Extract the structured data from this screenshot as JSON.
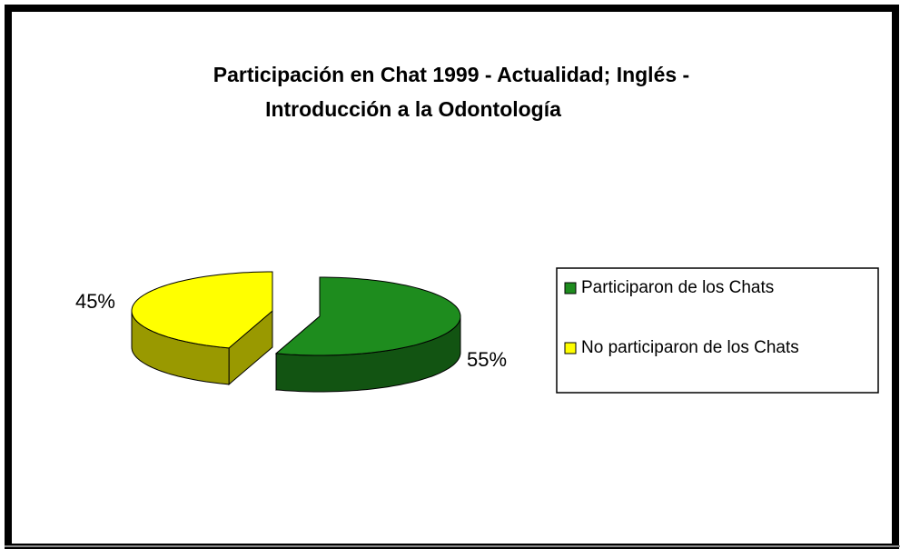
{
  "chart_data": {
    "type": "pie",
    "title": [
      "Participación en Chat 1999 - Actualidad; Inglés -",
      "Introducción a la Odontología"
    ],
    "categories": [
      "Participaron de los Chats",
      "No participaron de los Chats"
    ],
    "values": [
      55,
      45
    ],
    "value_labels": [
      "55%",
      "45%"
    ],
    "colors": [
      "#1e8c1e",
      "#ffff00"
    ],
    "legend": "right"
  }
}
